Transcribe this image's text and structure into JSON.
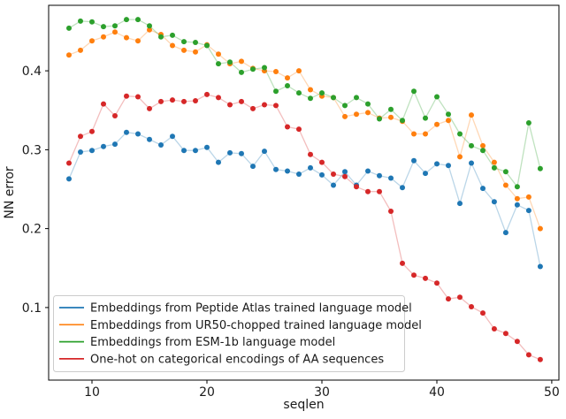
{
  "figure": {
    "background": "#ffffff",
    "frame_color": "#000000",
    "legend_border_color": "#cccccc"
  },
  "chart_data": {
    "type": "line",
    "title": "",
    "xlabel": "seqlen",
    "ylabel": "NN error",
    "xlim": [
      6.23,
      50.62
    ],
    "ylim": [
      0.008,
      0.483
    ],
    "xticks": [
      10,
      20,
      30,
      40,
      50
    ],
    "yticks": [
      0.1,
      0.2,
      0.3,
      0.4
    ],
    "grid": false,
    "legend_position": "lower left",
    "marker": "dot",
    "x": [
      8,
      9,
      10,
      11,
      12,
      13,
      14,
      15,
      16,
      17,
      18,
      19,
      20,
      21,
      22,
      23,
      24,
      25,
      26,
      27,
      28,
      29,
      30,
      31,
      32,
      33,
      34,
      35,
      36,
      37,
      38,
      39,
      40,
      41,
      42,
      43,
      44,
      45,
      46,
      47,
      48,
      49
    ],
    "series": [
      {
        "name": "Embeddings from Peptide Atlas trained language model",
        "color": "#1f77b4",
        "values": [
          0.263,
          0.297,
          0.299,
          0.304,
          0.307,
          0.322,
          0.32,
          0.313,
          0.306,
          0.317,
          0.299,
          0.299,
          0.303,
          0.284,
          0.296,
          0.295,
          0.279,
          0.298,
          0.275,
          0.273,
          0.269,
          0.277,
          0.268,
          0.255,
          0.272,
          0.255,
          0.273,
          0.267,
          0.264,
          0.252,
          0.286,
          0.27,
          0.282,
          0.28,
          0.232,
          0.283,
          0.251,
          0.234,
          0.195,
          0.23,
          0.223,
          0.152
        ]
      },
      {
        "name": "Embeddings from UR50-chopped trained language model",
        "color": "#ff7f0e",
        "values": [
          0.42,
          0.426,
          0.438,
          0.443,
          0.449,
          0.442,
          0.438,
          0.452,
          0.446,
          0.432,
          0.426,
          0.424,
          0.433,
          0.421,
          0.409,
          0.412,
          0.403,
          0.4,
          0.399,
          0.391,
          0.4,
          0.376,
          0.368,
          0.366,
          0.342,
          0.345,
          0.347,
          0.34,
          0.341,
          0.336,
          0.32,
          0.32,
          0.332,
          0.337,
          0.291,
          0.344,
          0.305,
          0.284,
          0.255,
          0.238,
          0.24,
          0.2
        ]
      },
      {
        "name": "Embeddings from ESM-1b language model",
        "color": "#2ca02c",
        "values": [
          0.454,
          0.463,
          0.462,
          0.456,
          0.457,
          0.465,
          0.465,
          0.457,
          0.443,
          0.445,
          0.437,
          0.436,
          0.432,
          0.409,
          0.411,
          0.398,
          0.402,
          0.404,
          0.374,
          0.381,
          0.372,
          0.365,
          0.372,
          0.366,
          0.356,
          0.366,
          0.358,
          0.339,
          0.351,
          0.337,
          0.374,
          0.34,
          0.367,
          0.345,
          0.32,
          0.305,
          0.299,
          0.277,
          0.272,
          0.253,
          0.334,
          0.276
        ]
      },
      {
        "name": "One-hot on categorical encodings of AA sequences",
        "color": "#d62728",
        "values": [
          0.283,
          0.317,
          0.323,
          0.358,
          0.343,
          0.368,
          0.367,
          0.352,
          0.361,
          0.363,
          0.361,
          0.362,
          0.37,
          0.366,
          0.357,
          0.361,
          0.352,
          0.357,
          0.356,
          0.329,
          0.326,
          0.294,
          0.284,
          0.269,
          0.266,
          0.253,
          0.247,
          0.247,
          0.222,
          0.156,
          0.141,
          0.137,
          0.131,
          0.111,
          0.113,
          0.101,
          0.093,
          0.073,
          0.067,
          0.057,
          0.04,
          0.034
        ]
      }
    ]
  }
}
